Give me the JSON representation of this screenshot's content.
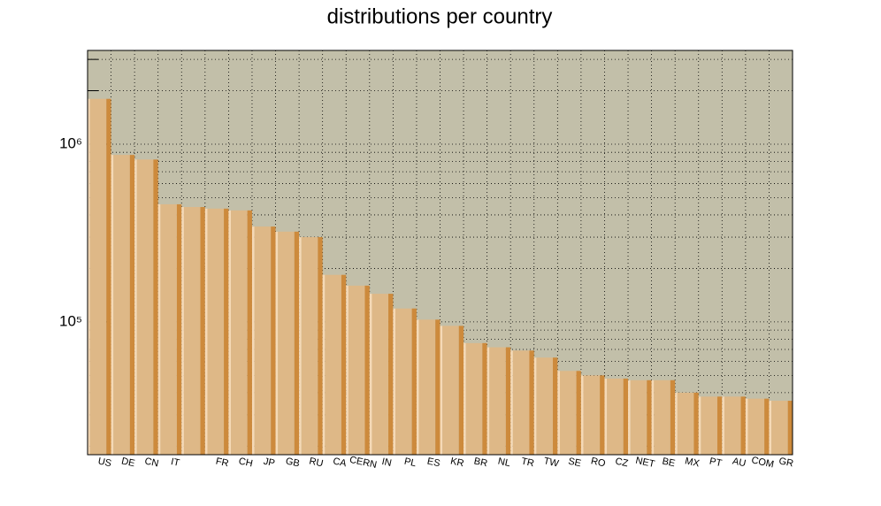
{
  "chart_data": {
    "type": "bar",
    "title": "distributions per country",
    "categories": [
      "US",
      "DE",
      "CN",
      "IT",
      null,
      "FR",
      "CH",
      "JP",
      "GB",
      "RU",
      "CA",
      "CERN",
      "IN",
      "PL",
      "ES",
      "KR",
      "BR",
      "NL",
      "TR",
      "TW",
      "SE",
      "RO",
      "CZ",
      "NET",
      "BE",
      "MX",
      "PT",
      "AU",
      "COM",
      "GR"
    ],
    "values": [
      1800000,
      870000,
      820000,
      459000,
      443000,
      434000,
      424000,
      344000,
      322000,
      300000,
      184000,
      160000,
      144000,
      119000,
      103000,
      95000,
      76000,
      72000,
      69000,
      63000,
      53000,
      50000,
      48000,
      47000,
      47000,
      40000,
      38000,
      38000,
      37000,
      36000
    ],
    "color": "#deb887",
    "ylim": [
      17900,
      3370000
    ],
    "yticks": [
      {
        "value": 100000,
        "label": "10⁵"
      },
      {
        "value": 1000000,
        "label": "10⁶"
      }
    ],
    "minor_yticks": [
      20000,
      30000,
      40000,
      50000,
      60000,
      70000,
      80000,
      90000,
      200000,
      300000,
      400000,
      500000,
      600000,
      700000,
      800000,
      900000,
      2000000,
      3000000
    ],
    "log_y": true,
    "grid": true
  }
}
